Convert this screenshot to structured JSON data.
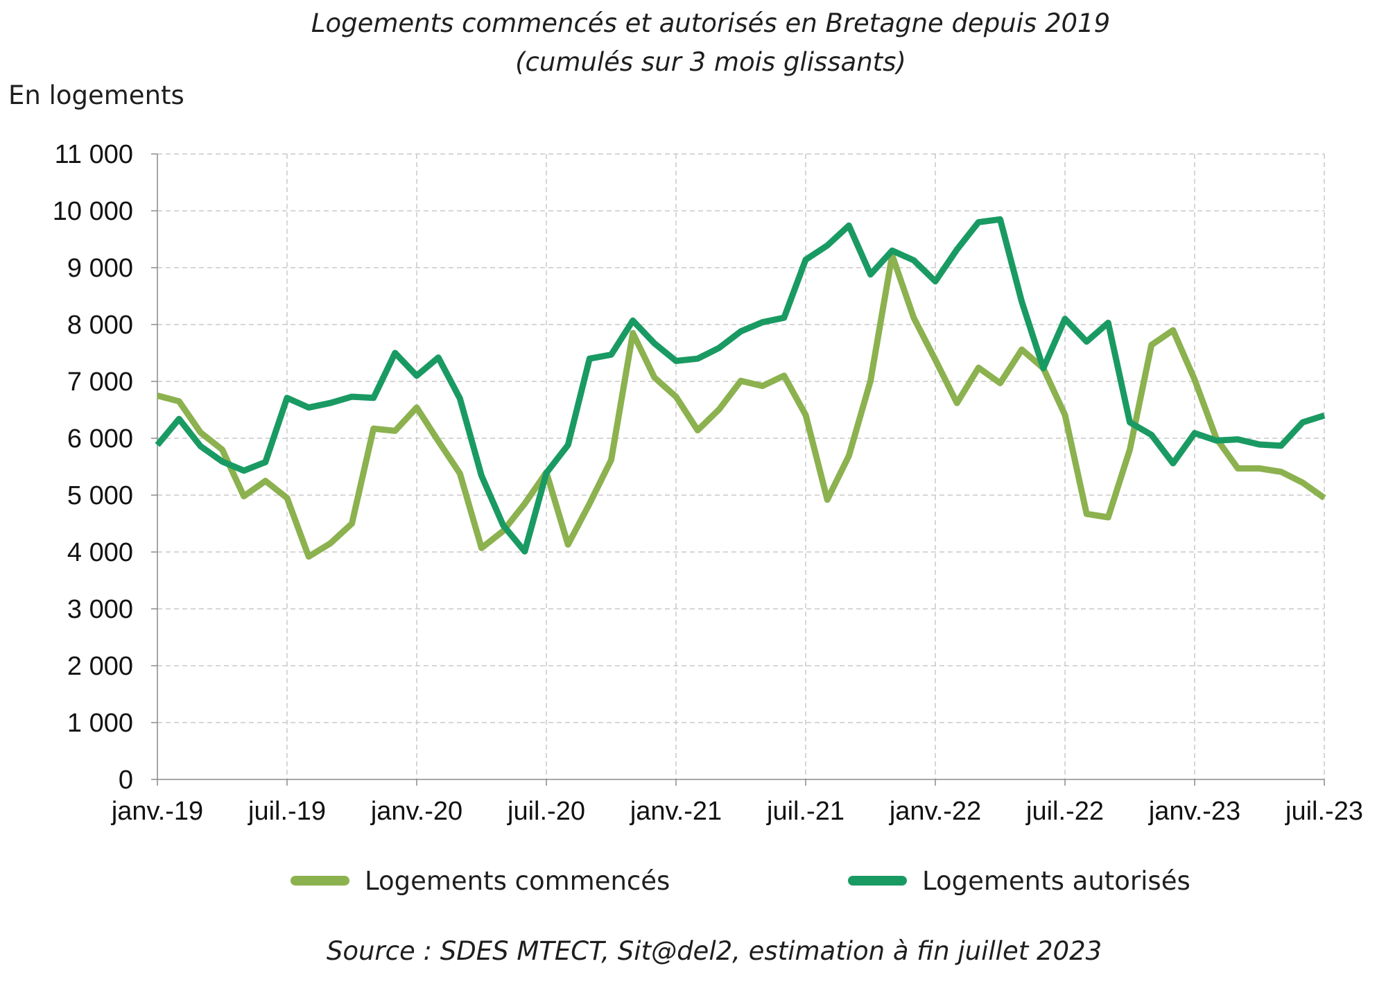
{
  "chart_data": {
    "type": "line",
    "title": "Logements commencés et autorisés en Bretagne depuis 2019",
    "subtitle": "(cumulés sur 3 mois glissants)",
    "ylabel": "En logements",
    "xlabel": "",
    "ylim": [
      0,
      11000
    ],
    "yticks": [
      0,
      1000,
      2000,
      3000,
      4000,
      5000,
      6000,
      7000,
      8000,
      9000,
      10000,
      11000
    ],
    "ytick_labels": [
      "0",
      "1 000",
      "2 000",
      "3 000",
      "4 000",
      "5 000",
      "6 000",
      "7 000",
      "8 000",
      "9 000",
      "10 000",
      "11 000"
    ],
    "x_tick_labels": [
      "janv.-19",
      "juil.-19",
      "janv.-20",
      "juil.-20",
      "janv.-21",
      "juil.-21",
      "janv.-22",
      "juil.-22",
      "janv.-23",
      "juil.-23"
    ],
    "x_start": "2019-01",
    "x_end": "2023-07",
    "grid": true,
    "legend_position": "bottom",
    "series": [
      {
        "name": "Logements commencés",
        "color": "#8cb14f",
        "values": [
          6750,
          6650,
          6100,
          5800,
          4980,
          5250,
          4950,
          3920,
          4150,
          4500,
          6170,
          6130,
          6540,
          5950,
          5380,
          4070,
          4370,
          4850,
          5400,
          4130,
          4850,
          5620,
          7850,
          7070,
          6730,
          6140,
          6510,
          7010,
          6920,
          7100,
          6410,
          4920,
          5690,
          7010,
          9220,
          8120,
          7380,
          6620,
          7240,
          6970,
          7560,
          7230,
          6410,
          4670,
          4610,
          5800,
          7640,
          7900,
          7030,
          6000,
          5470,
          5470,
          5410,
          5220,
          4950
        ]
      },
      {
        "name": "Logements autorisés",
        "color": "#1a9a63",
        "values": [
          5880,
          6340,
          5860,
          5590,
          5430,
          5580,
          6710,
          6540,
          6620,
          6730,
          6710,
          7500,
          7100,
          7420,
          6700,
          5340,
          4470,
          4010,
          5390,
          5880,
          7400,
          7470,
          8070,
          7670,
          7360,
          7400,
          7590,
          7880,
          8040,
          8120,
          9140,
          9390,
          9740,
          8880,
          9300,
          9130,
          8760,
          9320,
          9800,
          9850,
          8400,
          7230,
          8100,
          7700,
          8030,
          6280,
          6060,
          5560,
          6090,
          5960,
          5980,
          5890,
          5870,
          6280,
          6400
        ]
      }
    ]
  },
  "source_text": "Source : SDES MTECT, Sit@del2, estimation à fin juillet 2023"
}
